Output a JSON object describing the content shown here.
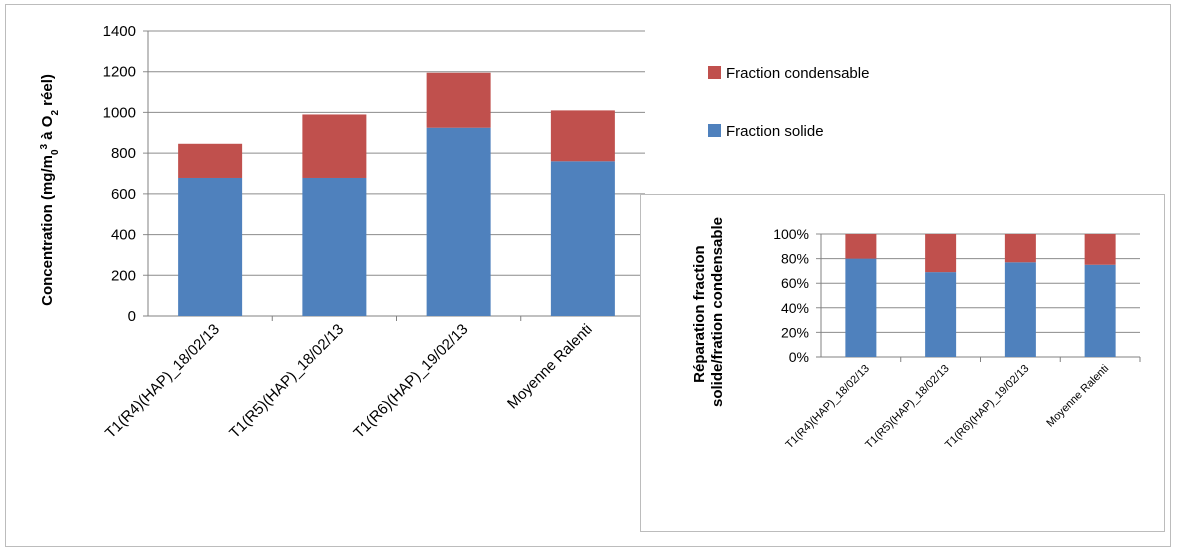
{
  "colors": {
    "solide": "#4f81bd",
    "condensable": "#c0504d",
    "grid": "#8c8c8c"
  },
  "legend": {
    "condensable": "Fraction condensable",
    "solide": "Fraction solide"
  },
  "main_ylabel": {
    "prefix": "Concentration (mg/m",
    "sub0": "0",
    "sup3": "3",
    "mid": " à O",
    "sub2": "2",
    "suffix": " réel)"
  },
  "inset_ylabel": {
    "line1": "Réparation fraction",
    "line2": "solide/fration condensable"
  },
  "chart_data": [
    {
      "type": "bar",
      "stacked": true,
      "categories": [
        "T1(R4)(HAP)_18/02/13",
        "T1(R5)(HAP)_18/02/13",
        "T1(R6)(HAP)_19/02/13",
        "Moyenne Ralenti"
      ],
      "series": [
        {
          "name": "Fraction solide",
          "values": [
            678,
            678,
            925,
            760
          ]
        },
        {
          "name": "Fraction condensable",
          "values": [
            168,
            312,
            270,
            250
          ]
        }
      ],
      "ylim": [
        0,
        1400
      ],
      "yticks": [
        0,
        200,
        400,
        600,
        800,
        1000,
        1200,
        1400
      ],
      "ytick_labels": [
        "0",
        "200",
        "400",
        "600",
        "800",
        "1000",
        "1200",
        "1400"
      ],
      "grid": true,
      "legend_position": "right"
    },
    {
      "type": "bar",
      "stacked": true,
      "percent": true,
      "categories": [
        "T1(R4)(HAP)_18/02/13",
        "T1(R5)(HAP)_18/02/13",
        "T1(R6)(HAP)_19/02/13",
        "Moyenne Ralenti"
      ],
      "series": [
        {
          "name": "Fraction solide",
          "values": [
            80,
            69,
            77,
            75
          ]
        },
        {
          "name": "Fraction condensable",
          "values": [
            20,
            31,
            23,
            25
          ]
        }
      ],
      "ylim": [
        0,
        100
      ],
      "yticks": [
        0,
        20,
        40,
        60,
        80,
        100
      ],
      "ytick_labels": [
        "0%",
        "20%",
        "40%",
        "60%",
        "80%",
        "100%"
      ],
      "grid": true
    }
  ]
}
